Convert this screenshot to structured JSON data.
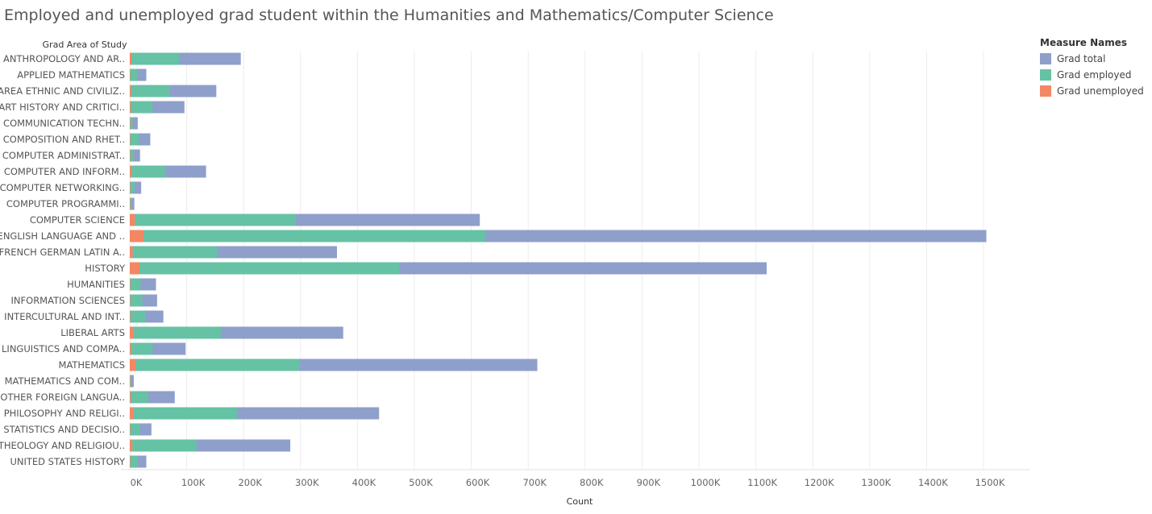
{
  "chart_data": {
    "type": "bar",
    "orientation": "horizontal",
    "stacked": false,
    "title": "Employed and unemployed grad student within the Humanities and Mathematics/Computer Science",
    "row_header": "Grad Area of Study",
    "xlabel": "Count",
    "xlim": [
      0,
      1580000
    ],
    "ticks": [
      0,
      100000,
      200000,
      300000,
      400000,
      500000,
      600000,
      700000,
      800000,
      900000,
      1000000,
      1100000,
      1200000,
      1300000,
      1400000,
      1500000
    ],
    "tick_labels": [
      "0K",
      "100K",
      "200K",
      "300K",
      "400K",
      "500K",
      "600K",
      "700K",
      "800K",
      "900K",
      "1000K",
      "1100K",
      "1200K",
      "1300K",
      "1400K",
      "1500K"
    ],
    "grid": true,
    "legend_position": "right",
    "legend_title": "Measure Names",
    "categories": [
      "ANTHROPOLOGY AND AR..",
      "APPLIED MATHEMATICS",
      "AREA ETHNIC AND CIVILIZ..",
      "ART HISTORY AND CRITICI..",
      "COMMUNICATION TECHN..",
      "COMPOSITION AND RHET..",
      "COMPUTER ADMINISTRAT..",
      "COMPUTER AND INFORM..",
      "COMPUTER NETWORKING..",
      "COMPUTER PROGRAMMI..",
      "COMPUTER SCIENCE",
      "ENGLISH LANGUAGE AND ..",
      "FRENCH GERMAN LATIN A..",
      "HISTORY",
      "HUMANITIES",
      "INFORMATION SCIENCES",
      "INTERCULTURAL AND INT..",
      "LIBERAL ARTS",
      "LINGUISTICS AND COMPA..",
      "MATHEMATICS",
      "MATHEMATICS AND COM..",
      "OTHER FOREIGN LANGUA..",
      "PHILOSOPHY AND RELIGI..",
      "STATISTICS AND DECISIO..",
      "THEOLOGY AND RELIGIOU..",
      "UNITED STATES HISTORY"
    ],
    "series": [
      {
        "name": "Grad total",
        "color": "#8F9FCB",
        "values": [
          195000,
          29000,
          152000,
          96000,
          14000,
          36000,
          18000,
          134000,
          20000,
          8000,
          615000,
          1505000,
          364000,
          1119000,
          46000,
          48000,
          59000,
          375000,
          98000,
          716000,
          7000,
          79000,
          438000,
          38000,
          282000,
          29000
        ]
      },
      {
        "name": "Grad employed",
        "color": "#66C2A5",
        "values": [
          87000,
          13000,
          70000,
          40000,
          5000,
          16000,
          7000,
          63000,
          8000,
          3000,
          292000,
          625000,
          153000,
          473000,
          19000,
          22000,
          28000,
          160000,
          40000,
          298000,
          2500,
          32000,
          188000,
          18000,
          117000,
          14000
        ]
      },
      {
        "name": "Grad unemployed",
        "color": "#F48763",
        "values": [
          3000,
          500,
          2000,
          1500,
          300,
          800,
          500,
          2500,
          400,
          200,
          9000,
          24000,
          5000,
          17000,
          800,
          800,
          1000,
          6000,
          2000,
          10000,
          100,
          1500,
          6000,
          800,
          4500,
          500
        ]
      }
    ]
  }
}
